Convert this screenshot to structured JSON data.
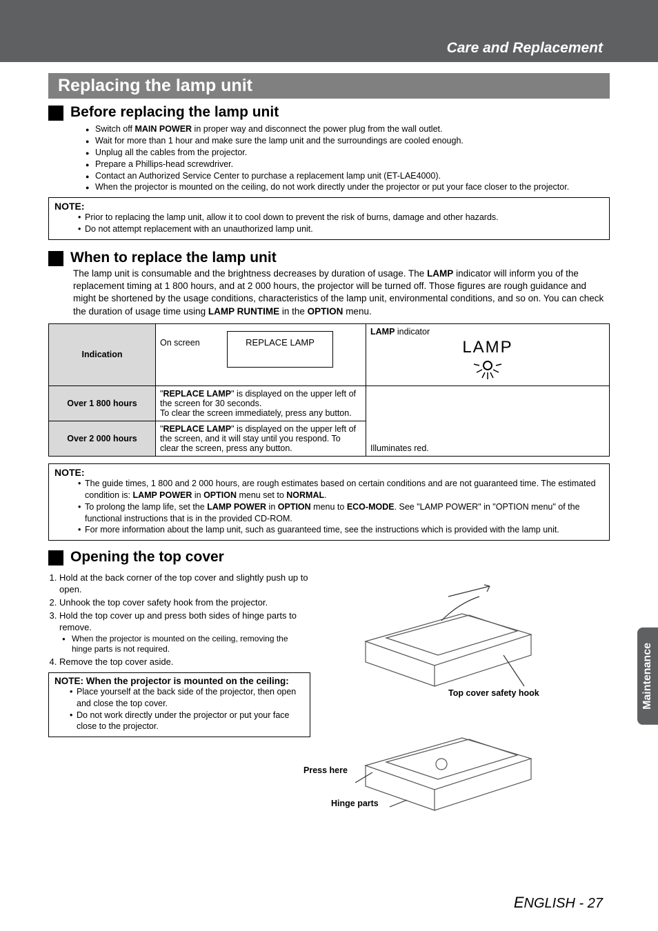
{
  "header": {
    "title": "Care and Replacement"
  },
  "section_title": "Replacing the lamp unit",
  "before": {
    "title": "Before replacing the lamp unit",
    "bullets": [
      "Switch off <b>MAIN POWER</b> in proper way and disconnect the power plug from the wall outlet.",
      "Wait for more than 1 hour and make sure the lamp unit and the surroundings are cooled enough.",
      "Unplug all the cables from the projector.",
      "Prepare a Phillips-head screwdriver.",
      "Contact an Authorized Service Center to purchase a replacement lamp unit (ET-LAE4000).",
      "When the projector is mounted on the ceiling, do not work directly under the projector or put your face closer to the projector."
    ]
  },
  "note1": {
    "title": "NOTE:",
    "items": [
      "Prior to replacing the lamp unit, allow it to cool down to prevent the risk of burns, damage and other hazards.",
      "Do not attempt replacement with an unauthorized lamp unit."
    ]
  },
  "when": {
    "title": "When to replace the lamp unit",
    "body": "The lamp unit is consumable and the brightness decreases by duration of usage. The <b>LAMP</b> indicator will inform you of the replacement timing at 1 800 hours, and at 2 000 hours, the projector will be turned off. Those figures are rough guidance and might be shortened by the usage conditions, characteristics of the lamp unit, environmental conditions, and so on. You can check the duration of usage time using <b>LAMP RUNTIME</b> in the <b>OPTION</b> menu."
  },
  "table": {
    "row1_head": "Indication",
    "onscreen_label": "On screen",
    "replace_lamp_box": "REPLACE LAMP",
    "lamp_indicator_label": "<b>LAMP</b> indicator",
    "lamp_text": "LAMP",
    "row2_head": "Over 1 800 hours",
    "row2_text": "\"<b>REPLACE LAMP</b>\" is displayed on the upper left of the screen for 30 seconds.<br>To clear the screen immediately, press any button.",
    "row3_head": "Over 2 000 hours",
    "row3_text": "\"<b>REPLACE LAMP</b>\" is displayed on the upper left of the screen, and it will stay until you respond. To clear the screen, press any button.",
    "illuminates": "Illuminates red."
  },
  "note2": {
    "title": "NOTE:",
    "items": [
      "The guide times, 1 800 and 2 000 hours, are rough estimates based on certain conditions and are not guaranteed time. The estimated condition is: <b>LAMP POWER</b> in <b>OPTION</b> menu set to <b>NORMAL</b>.",
      "To prolong the lamp life, set the <b>LAMP POWER</b> in <b>OPTION</b> menu to <b>ECO-MODE</b>. See \"LAMP POWER\" in \"OPTION menu\" of the functional instructions that is in the provided CD-ROM.",
      "For more information about the lamp unit, such as guaranteed time, see the instructions which is provided with the lamp unit."
    ]
  },
  "opening": {
    "title": "Opening the top cover",
    "steps": [
      "Hold at the back corner of the top cover and slightly push up to open.",
      "Unhook the top cover safety hook from the projector.",
      "Hold the top cover up and press both sides of hinge parts to remove.",
      "Remove the top cover aside."
    ],
    "step3_sub": "When the projector is mounted on the ceiling, removing the hinge parts is not required."
  },
  "ceiling_note": {
    "title": "NOTE: When the projector is mounted on the ceiling:",
    "items": [
      "Place yourself at the back side of the projector, then open and close the top cover.",
      "Do not work directly under the projector or put your face close to the projector."
    ]
  },
  "diagram": {
    "label_hook": "Top cover safety hook",
    "label_press": "Press here",
    "label_hinge": "Hinge parts"
  },
  "side_tab": "Maintenance",
  "footer": {
    "lang": "ENGLISH",
    "sep": " - ",
    "page": "27"
  },
  "colors": {
    "header_bg": "#5f6062",
    "section_bg": "#808080",
    "row_head_bg": "#d9d9d9"
  }
}
